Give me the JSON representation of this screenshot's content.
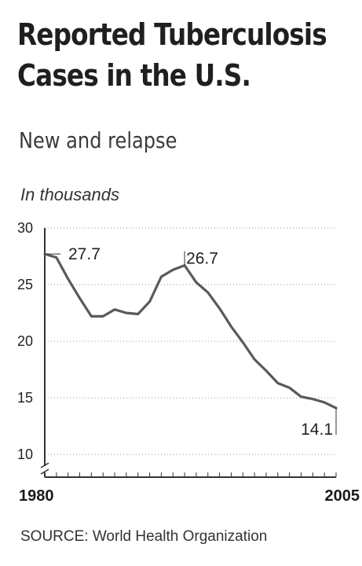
{
  "header": {
    "title_line1": "Reported Tuberculosis",
    "title_line2": "Cases in the U.S.",
    "subtitle": "New and relapse",
    "unit_label": "In thousands"
  },
  "footer": {
    "source": "SOURCE: World Health Organization"
  },
  "chart_data": {
    "type": "line",
    "title": "Reported Tuberculosis Cases in the U.S.",
    "subtitle": "New and relapse",
    "ylabel": "In thousands",
    "xlabel": "",
    "x": [
      1980,
      1981,
      1982,
      1983,
      1984,
      1985,
      1986,
      1987,
      1988,
      1989,
      1990,
      1991,
      1992,
      1993,
      1994,
      1995,
      1996,
      1997,
      1998,
      1999,
      2000,
      2001,
      2002,
      2003,
      2004,
      2005
    ],
    "series": [
      {
        "values": [
          27.7,
          27.4,
          25.5,
          23.8,
          22.2,
          22.2,
          22.8,
          22.5,
          22.4,
          23.5,
          25.7,
          26.3,
          26.7,
          25.2,
          24.3,
          22.9,
          21.3,
          19.9,
          18.4,
          17.4,
          16.3,
          15.9,
          15.1,
          14.9,
          14.6,
          14.1
        ]
      }
    ],
    "xlim": [
      1980,
      2005
    ],
    "ylim": [
      8,
      30
    ],
    "y_ticks": [
      "10",
      "15",
      "20",
      "25",
      "30"
    ],
    "x_ticks": [
      "1980",
      "2005"
    ],
    "y_axis_break": true,
    "grid": "horizontal dotted",
    "annotations": [
      {
        "x": 1980,
        "y": 27.7,
        "label": "27.7"
      },
      {
        "x": 1992,
        "y": 26.7,
        "label": "26.7"
      },
      {
        "x": 2005,
        "y": 14.1,
        "label": "14.1"
      }
    ],
    "colors": {
      "line": "#5a5a5a",
      "axis": "#333333",
      "grid": "#9a9a9a"
    }
  }
}
